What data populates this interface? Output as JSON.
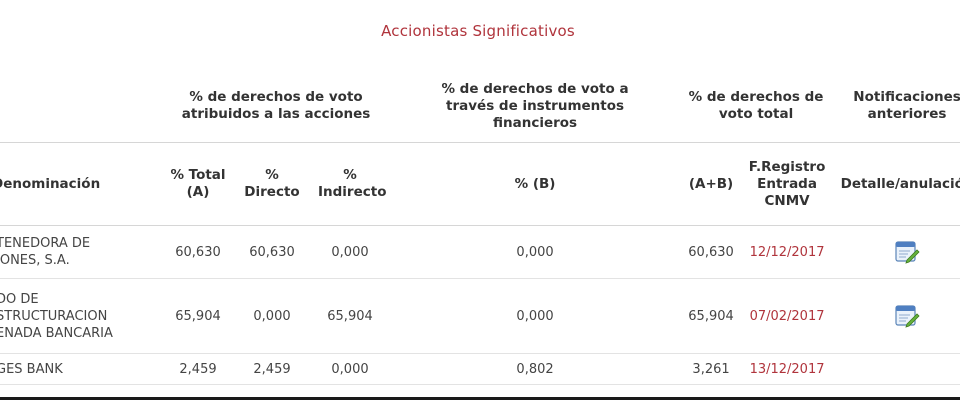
{
  "title": "Accionistas Significativos",
  "group_headers": {
    "voting_rights_shares": "% de derechos de voto atribuidos a las acciones",
    "voting_rights_instruments": "% de derechos de voto a través de instrumentos financieros",
    "voting_rights_total": "% de derechos de voto total",
    "previous_notifications": "Notificaciones anteriores"
  },
  "columns": {
    "denomination": "Denominación",
    "pct_total": "% Total (A)",
    "pct_direct": "% Directo",
    "pct_indirect": "% Indirecto",
    "pct_b": "% (B)",
    "a_plus_b": "(A+B)",
    "registry_date": "F.Registro Entrada CNMV",
    "detail": "Detalle/anulación"
  },
  "rows": [
    {
      "name_lines": [
        "TENEDORA DE",
        "IONES, S.A."
      ],
      "total": "60,630",
      "direct": "60,630",
      "indirect": "0,000",
      "b": "0,000",
      "a_plus_b": "60,630",
      "date": "12/12/2017",
      "detail_icon": "document-edit-icon"
    },
    {
      "name_lines": [
        "DO DE",
        "STRUCTURACION",
        "ENADA BANCARIA"
      ],
      "total": "65,904",
      "direct": "0,000",
      "indirect": "65,904",
      "b": "0,000",
      "a_plus_b": "65,904",
      "date": "07/02/2017",
      "detail_icon": "document-edit-icon"
    },
    {
      "name_lines": [
        "GES BANK"
      ],
      "total": "2,459",
      "direct": "2,459",
      "indirect": "0,000",
      "b": "0,802",
      "a_plus_b": "3,261",
      "date": "13/12/2017"
    }
  ],
  "colors": {
    "accent": "#b0343c",
    "text": "#333333",
    "rule": "#d6d6d6"
  }
}
